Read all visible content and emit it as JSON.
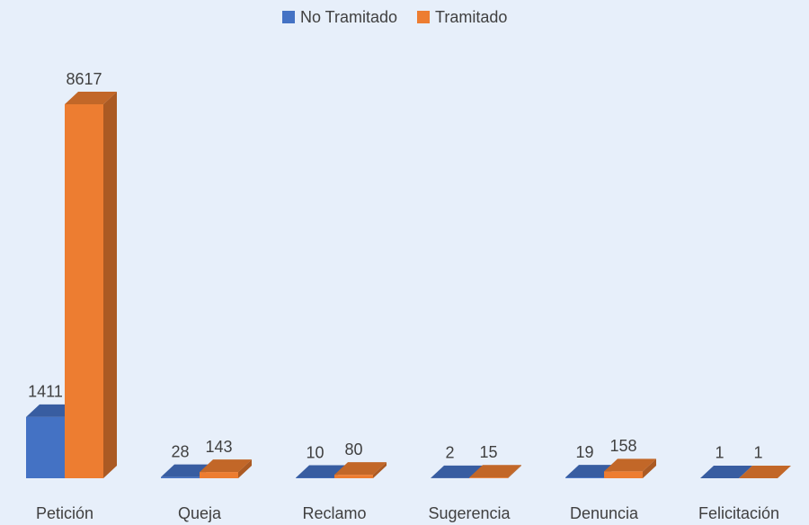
{
  "chart_data": {
    "type": "bar3d",
    "categories": [
      "Petición",
      "Queja",
      "Reclamo",
      "Sugerencia",
      "Denuncia",
      "Felicitación"
    ],
    "series": [
      {
        "name": "No Tramitado",
        "color": "#4472c4",
        "values": [
          1411,
          28,
          10,
          2,
          19,
          1
        ]
      },
      {
        "name": "Tramitado",
        "color": "#ed7d31",
        "values": [
          8617,
          143,
          80,
          15,
          158,
          1
        ]
      }
    ],
    "legend": "top"
  }
}
